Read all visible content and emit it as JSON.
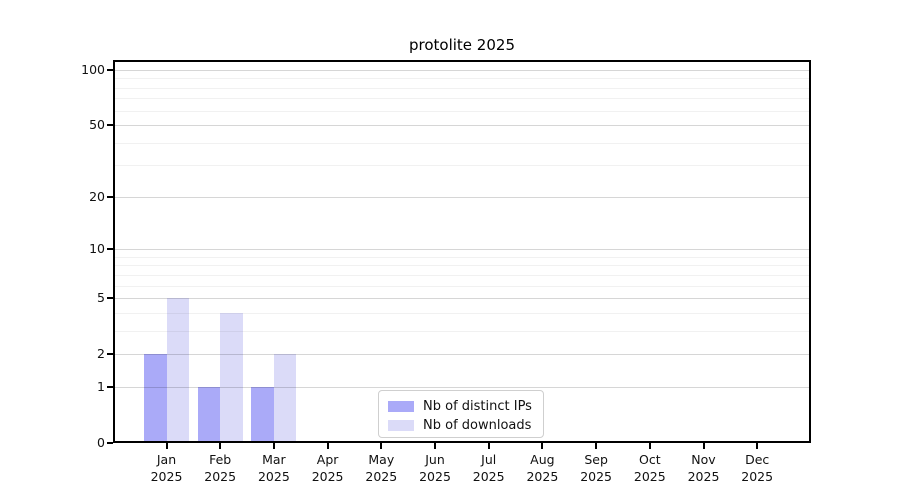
{
  "title": "protolite 2025",
  "chart_data": {
    "type": "bar",
    "title": "protolite 2025",
    "categories": [
      "Jan 2025",
      "Feb 2025",
      "Mar 2025",
      "Apr 2025",
      "May 2025",
      "Jun 2025",
      "Jul 2025",
      "Aug 2025",
      "Sep 2025",
      "Oct 2025",
      "Nov 2025",
      "Dec 2025"
    ],
    "months": [
      "Jan",
      "Feb",
      "Mar",
      "Apr",
      "May",
      "Jun",
      "Jul",
      "Aug",
      "Sep",
      "Oct",
      "Nov",
      "Dec"
    ],
    "year": "2025",
    "series": [
      {
        "name": "Nb of distinct IPs",
        "color": "#aaaaf8",
        "values": [
          2,
          1,
          1,
          0,
          0,
          0,
          0,
          0,
          0,
          0,
          0,
          0
        ]
      },
      {
        "name": "Nb of downloads",
        "color": "#dbdbf8",
        "values": [
          5,
          4,
          2,
          0,
          0,
          0,
          0,
          0,
          0,
          0,
          0,
          0
        ]
      }
    ],
    "xlabel": "",
    "ylabel": "",
    "y_ticks": [
      0,
      1,
      2,
      5,
      10,
      20,
      50,
      100
    ],
    "y_minor_gridlines": [
      3,
      4,
      6,
      7,
      8,
      9,
      30,
      40,
      60,
      70,
      80,
      90
    ],
    "y_scale": "log10(1+y)",
    "ylim": [
      0,
      113
    ],
    "grid": true,
    "legend_position": "inside-bottom-center",
    "frame_color": "#000000",
    "text_color": "#111111"
  }
}
